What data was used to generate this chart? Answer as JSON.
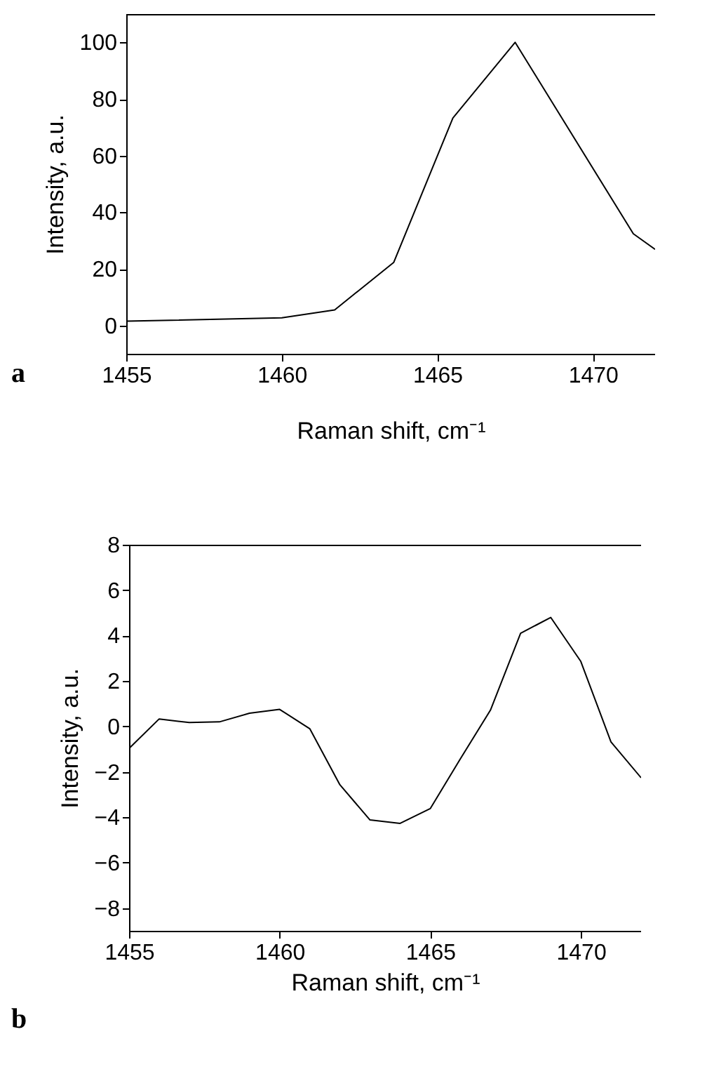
{
  "chart_data": [
    {
      "type": "line",
      "xlabel": "Raman shift, cm⁻¹",
      "ylabel": "Intensity, a.u.",
      "annotations": [
        "a"
      ],
      "xlim": [
        1455,
        1472
      ],
      "xticks": [
        1455,
        1460,
        1465,
        1470
      ],
      "ylim": [
        -10,
        110
      ],
      "yticks": [
        0,
        20,
        40,
        60,
        80,
        100
      ],
      "grid": false,
      "series": [
        {
          "color": "#000000",
          "x": [
            1455,
            1460,
            1461.7,
            1463.6,
            1465.5,
            1467.5,
            1471.3,
            1472
          ],
          "values": [
            1.5,
            2.7,
            5.5,
            22.3,
            73.3,
            100,
            32.4,
            26.9
          ]
        }
      ]
    },
    {
      "type": "line",
      "xlabel": "Raman shift, cm⁻¹",
      "ylabel": "Intensity, a.u.",
      "annotations": [
        "b"
      ],
      "xlim": [
        1455,
        1472
      ],
      "xticks": [
        1455,
        1460,
        1465,
        1470
      ],
      "ylim": [
        -9,
        8
      ],
      "yticks": [
        -8,
        -6,
        -4,
        -2,
        0,
        2,
        4,
        6,
        8
      ],
      "grid": false,
      "series": [
        {
          "color": "#000000",
          "x": [
            1455,
            1456,
            1457,
            1458,
            1459,
            1460,
            1461,
            1462,
            1463,
            1464,
            1465,
            1466,
            1467,
            1468,
            1469,
            1470,
            1471,
            1472
          ],
          "values": [
            -0.97,
            0.33,
            0.17,
            0.2,
            0.58,
            0.75,
            -0.1,
            -2.57,
            -4.12,
            -4.27,
            -3.62,
            -1.43,
            0.72,
            4.1,
            4.8,
            2.86,
            -0.68,
            -2.26
          ]
        }
      ]
    }
  ]
}
